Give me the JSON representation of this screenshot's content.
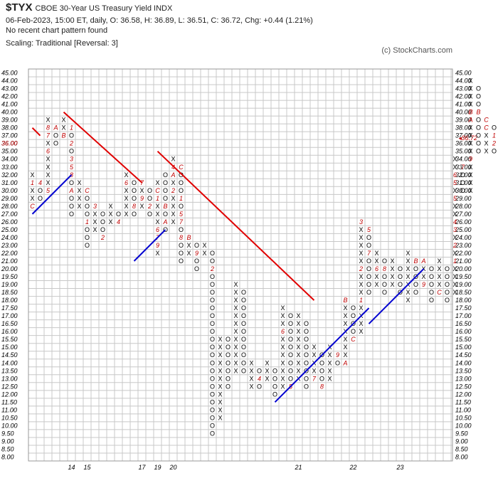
{
  "header": {
    "symbol": "$TYX",
    "description": "CBOE 30-Year US Treasury Yield  INDX",
    "line1": "06-Feb-2023, 15:00 ET, daily, O: 36.58, H: 36.89, L: 36.51, C: 36.72, Chg: +0.44 (1.21%)",
    "line2": "No recent chart pattern found",
    "line3": "Scaling: Traditional [Reversal: 3]",
    "copyright": "(c) StockCharts.com"
  },
  "chart_data": {
    "type": "point-and-figure",
    "box_size": 0.5,
    "reversal": 3,
    "y_ticks": [
      "8.00",
      "8.50",
      "9.00",
      "9.50",
      "10.00",
      "10.50",
      "11.00",
      "11.50",
      "12.00",
      "12.50",
      "13.00",
      "13.50",
      "14.00",
      "14.50",
      "15.00",
      "15.50",
      "16.00",
      "16.50",
      "17.00",
      "17.50",
      "18.00",
      "18.50",
      "19.00",
      "19.50",
      "20.00",
      "21.00",
      "22.00",
      "23.00",
      "24.00",
      "25.00",
      "26.00",
      "27.00",
      "28.00",
      "29.00",
      "30.00",
      "31.00",
      "32.00",
      "33.00",
      "34.00",
      "35.00",
      "36.00",
      "37.00",
      "38.00",
      "39.00",
      "40.00",
      "41.00",
      "42.00",
      "43.00",
      "44.00",
      "45.00"
    ],
    "last_price_left": "36.00",
    "last_price_right": "36.72",
    "x_labels": [
      {
        "col": 5,
        "label": "14"
      },
      {
        "col": 7,
        "label": "15"
      },
      {
        "col": 14,
        "label": "17"
      },
      {
        "col": 16,
        "label": "19"
      },
      {
        "col": 18,
        "label": "20"
      },
      {
        "col": 34,
        "label": "21"
      },
      {
        "col": 41,
        "label": "22"
      },
      {
        "col": 47,
        "label": "23"
      }
    ],
    "columns": [
      {
        "t": "X",
        "lo": 28,
        "hi": 32,
        "m": {
          "28": "C",
          "31": "1"
        }
      },
      {
        "t": "O",
        "lo": 29,
        "hi": 31,
        "m": {
          "31": "4"
        }
      },
      {
        "t": "X",
        "lo": 30,
        "hi": 39,
        "m": {
          "30": "5",
          "35": "6",
          "38": "8",
          "37": "7"
        }
      },
      {
        "t": "O",
        "lo": 36,
        "hi": 38,
        "m": {
          "38": "A"
        }
      },
      {
        "t": "X",
        "lo": 37,
        "hi": 39,
        "m": {
          "37": "B"
        }
      },
      {
        "t": "O",
        "lo": 27,
        "hi": 38,
        "m": {
          "38": "1",
          "34": "3",
          "36": "2",
          "32": "8",
          "33": "5",
          "30": "A"
        }
      },
      {
        "t": "X",
        "lo": 28,
        "hi": 31,
        "m": {}
      },
      {
        "t": "O",
        "lo": 23,
        "hi": 30,
        "m": {
          "30": "C",
          "26": "1"
        }
      },
      {
        "t": "X",
        "lo": 25,
        "hi": 28,
        "m": {
          "28": "3"
        }
      },
      {
        "t": "O",
        "lo": 24,
        "hi": 27,
        "m": {
          "24": "2"
        }
      },
      {
        "t": "X",
        "lo": 26,
        "hi": 28,
        "m": {}
      },
      {
        "t": "O",
        "lo": 26,
        "hi": 27,
        "m": {
          "26": "4"
        }
      },
      {
        "t": "X",
        "lo": 27,
        "hi": 32,
        "m": {
          "31": "6"
        }
      },
      {
        "t": "O",
        "lo": 27,
        "hi": 31,
        "m": {
          "28": "8"
        }
      },
      {
        "t": "X",
        "lo": 28,
        "hi": 31,
        "m": {
          "31": "7",
          "29": "9"
        }
      },
      {
        "t": "O",
        "lo": 27,
        "hi": 30,
        "m": {
          "31": "B",
          "28": "2"
        }
      },
      {
        "t": "X",
        "lo": 22,
        "hi": 31,
        "m": {
          "29": "1",
          "25": "6",
          "32": "3",
          "30": "C",
          "24": "7",
          "23": "9"
        }
      },
      {
        "t": "O",
        "lo": 25,
        "hi": 32,
        "m": {
          "28": "B",
          "26": "A"
        }
      },
      {
        "t": "X",
        "lo": 26,
        "hi": 34,
        "m": {
          "33": "4",
          "30": "2",
          "32": "A"
        }
      },
      {
        "t": "O",
        "lo": 21,
        "hi": 33,
        "m": {
          "33": "C",
          "29": "1",
          "27": "5",
          "26": "7",
          "24": "8"
        }
      },
      {
        "t": "X",
        "lo": 22,
        "hi": 24,
        "m": {
          "24": "B"
        }
      },
      {
        "t": "O",
        "lo": 20,
        "hi": 23,
        "m": {
          "22": "9"
        }
      },
      {
        "t": "X",
        "lo": 22,
        "hi": 23,
        "m": {}
      },
      {
        "t": "O",
        "lo": 9.5,
        "hi": 22.5,
        "m": {
          "23": "1",
          "20": "2"
        }
      },
      {
        "t": "X",
        "lo": 10.5,
        "hi": 15.5,
        "m": {
          "16": "3"
        }
      },
      {
        "t": "O",
        "lo": 12.5,
        "hi": 15.5,
        "m": {}
      },
      {
        "t": "X",
        "lo": 13.5,
        "hi": 19,
        "m": {}
      },
      {
        "t": "O",
        "lo": 13.5,
        "hi": 18.5,
        "m": {}
      },
      {
        "t": "X",
        "lo": 12.5,
        "hi": 14,
        "m": {}
      },
      {
        "t": "O",
        "lo": 12.5,
        "hi": 13.5,
        "m": {
          "13": "4"
        }
      },
      {
        "t": "X",
        "lo": 13,
        "hi": 14,
        "m": {}
      },
      {
        "t": "O",
        "lo": 12,
        "hi": 13.5,
        "m": {}
      },
      {
        "t": "X",
        "lo": 12.5,
        "hi": 17.5,
        "m": {
          "16": "6"
        }
      },
      {
        "t": "O",
        "lo": 12.5,
        "hi": 17,
        "m": {
          "12.5": "5"
        }
      },
      {
        "t": "X",
        "lo": 13,
        "hi": 17,
        "m": {}
      },
      {
        "t": "O",
        "lo": 12.5,
        "hi": 16.5,
        "m": {}
      },
      {
        "t": "X",
        "lo": 13,
        "hi": 15,
        "m": {
          "13": "7"
        }
      },
      {
        "t": "O",
        "lo": 12.5,
        "hi": 14.5,
        "m": {
          "12.5": "8"
        }
      },
      {
        "t": "X",
        "lo": 13,
        "hi": 15,
        "m": {}
      },
      {
        "t": "O",
        "lo": 14,
        "hi": 14.5,
        "m": {
          "14.5": "9"
        }
      },
      {
        "t": "X",
        "lo": 14,
        "hi": 18,
        "m": {
          "14": "A",
          "18": "B"
        }
      },
      {
        "t": "O",
        "lo": 15.5,
        "hi": 17.5,
        "m": {
          "15.5": "C"
        }
      },
      {
        "t": "X",
        "lo": 16,
        "hi": 26,
        "m": {
          "18": "1",
          "20": "2",
          "26": "3"
        }
      },
      {
        "t": "O",
        "lo": 18.5,
        "hi": 25,
        "m": {
          "25": "5",
          "22": "7"
        }
      },
      {
        "t": "X",
        "lo": 19,
        "hi": 22,
        "m": {
          "20": "6"
        }
      },
      {
        "t": "O",
        "lo": 18.5,
        "hi": 21.5,
        "m": {
          "20": "8"
        }
      },
      {
        "t": "X",
        "lo": 19,
        "hi": 21,
        "m": {}
      },
      {
        "t": "O",
        "lo": 18.5,
        "hi": 20.5,
        "m": {}
      },
      {
        "t": "X",
        "lo": 18,
        "hi": 22,
        "m": {}
      },
      {
        "t": "O",
        "lo": 18.5,
        "hi": 21,
        "m": {
          "21": "B"
        }
      },
      {
        "t": "X",
        "lo": 19,
        "hi": 21,
        "m": {
          "19": "9",
          "21": "A"
        }
      },
      {
        "t": "O",
        "lo": 18,
        "hi": 20.5,
        "m": {}
      },
      {
        "t": "X",
        "lo": 18.5,
        "hi": 21,
        "m": {
          "18.5": "C"
        }
      },
      {
        "t": "O",
        "lo": 18,
        "hi": 20.5,
        "m": {}
      },
      {
        "t": "X",
        "lo": 18.5,
        "hi": 34,
        "m": {
          "21": "1",
          "23": "2",
          "25": "3",
          "26": "4",
          "29": "5",
          "32": "6",
          "31": "5"
        }
      },
      {
        "t": "O",
        "lo": 30,
        "hi": 33,
        "m": {
          "33": "7",
          "29": "8"
        }
      },
      {
        "t": "X",
        "lo": 30,
        "hi": 44,
        "m": {
          "34": "9",
          "39": "A",
          "40": "B"
        }
      },
      {
        "t": "O",
        "lo": 35,
        "hi": 43,
        "m": {
          "40": "B"
        }
      },
      {
        "t": "X",
        "lo": 35,
        "hi": 39,
        "m": {
          "38": "C",
          "39": "C"
        }
      },
      {
        "t": "O",
        "lo": 35,
        "hi": 38,
        "m": {
          "37": "1",
          "36": "2"
        }
      }
    ],
    "trendlines": [
      {
        "color": "#e00000",
        "from": [
          0,
          38
        ],
        "to": [
          1,
          37
        ]
      },
      {
        "color": "#e00000",
        "from": [
          4,
          40
        ],
        "to": [
          14,
          31
        ]
      },
      {
        "color": "#e00000",
        "from": [
          16,
          35
        ],
        "to": [
          36,
          18
        ]
      },
      {
        "color": "#0000d0",
        "from": [
          0,
          27
        ],
        "to": [
          5,
          32
        ]
      },
      {
        "color": "#0000d0",
        "from": [
          13,
          21
        ],
        "to": [
          17,
          25
        ]
      },
      {
        "color": "#0000d0",
        "from": [
          31,
          11.5
        ],
        "to": [
          43,
          17.5
        ]
      },
      {
        "color": "#0000d0",
        "from": [
          43,
          16.5
        ],
        "to": [
          50,
          20
        ]
      }
    ]
  }
}
